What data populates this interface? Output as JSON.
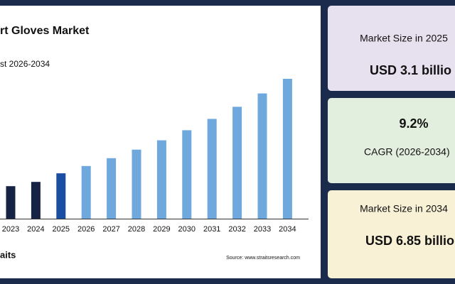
{
  "chart_data": {
    "type": "bar",
    "title": "rt Gloves Market",
    "subtitle": "st 2026-2034",
    "categories": [
      "2023",
      "2024",
      "2025",
      "2026",
      "2027",
      "2028",
      "2029",
      "2030",
      "2031",
      "2032",
      "2033",
      "2034"
    ],
    "values": [
      2.59,
      2.76,
      3.1,
      3.39,
      3.7,
      4.04,
      4.41,
      4.81,
      5.26,
      5.74,
      6.27,
      6.85
    ],
    "colors": [
      "#172345",
      "#172345",
      "#1a4ea3",
      "#6fa8dc",
      "#6fa8dc",
      "#6fa8dc",
      "#6fa8dc",
      "#6fa8dc",
      "#6fa8dc",
      "#6fa8dc",
      "#6fa8dc",
      "#6fa8dc"
    ],
    "ylim": [
      1.3,
      7.16
    ],
    "source": "Source: www.straitsresearch.com",
    "logo": "aits"
  },
  "cards": [
    {
      "label": "Market Size in 2025",
      "value": "USD 3.1 billio"
    },
    {
      "value": "9.2%",
      "label": "CAGR (2026-2034)"
    },
    {
      "label": "Market Size in 2034",
      "value": "USD 6.85 billio"
    }
  ]
}
